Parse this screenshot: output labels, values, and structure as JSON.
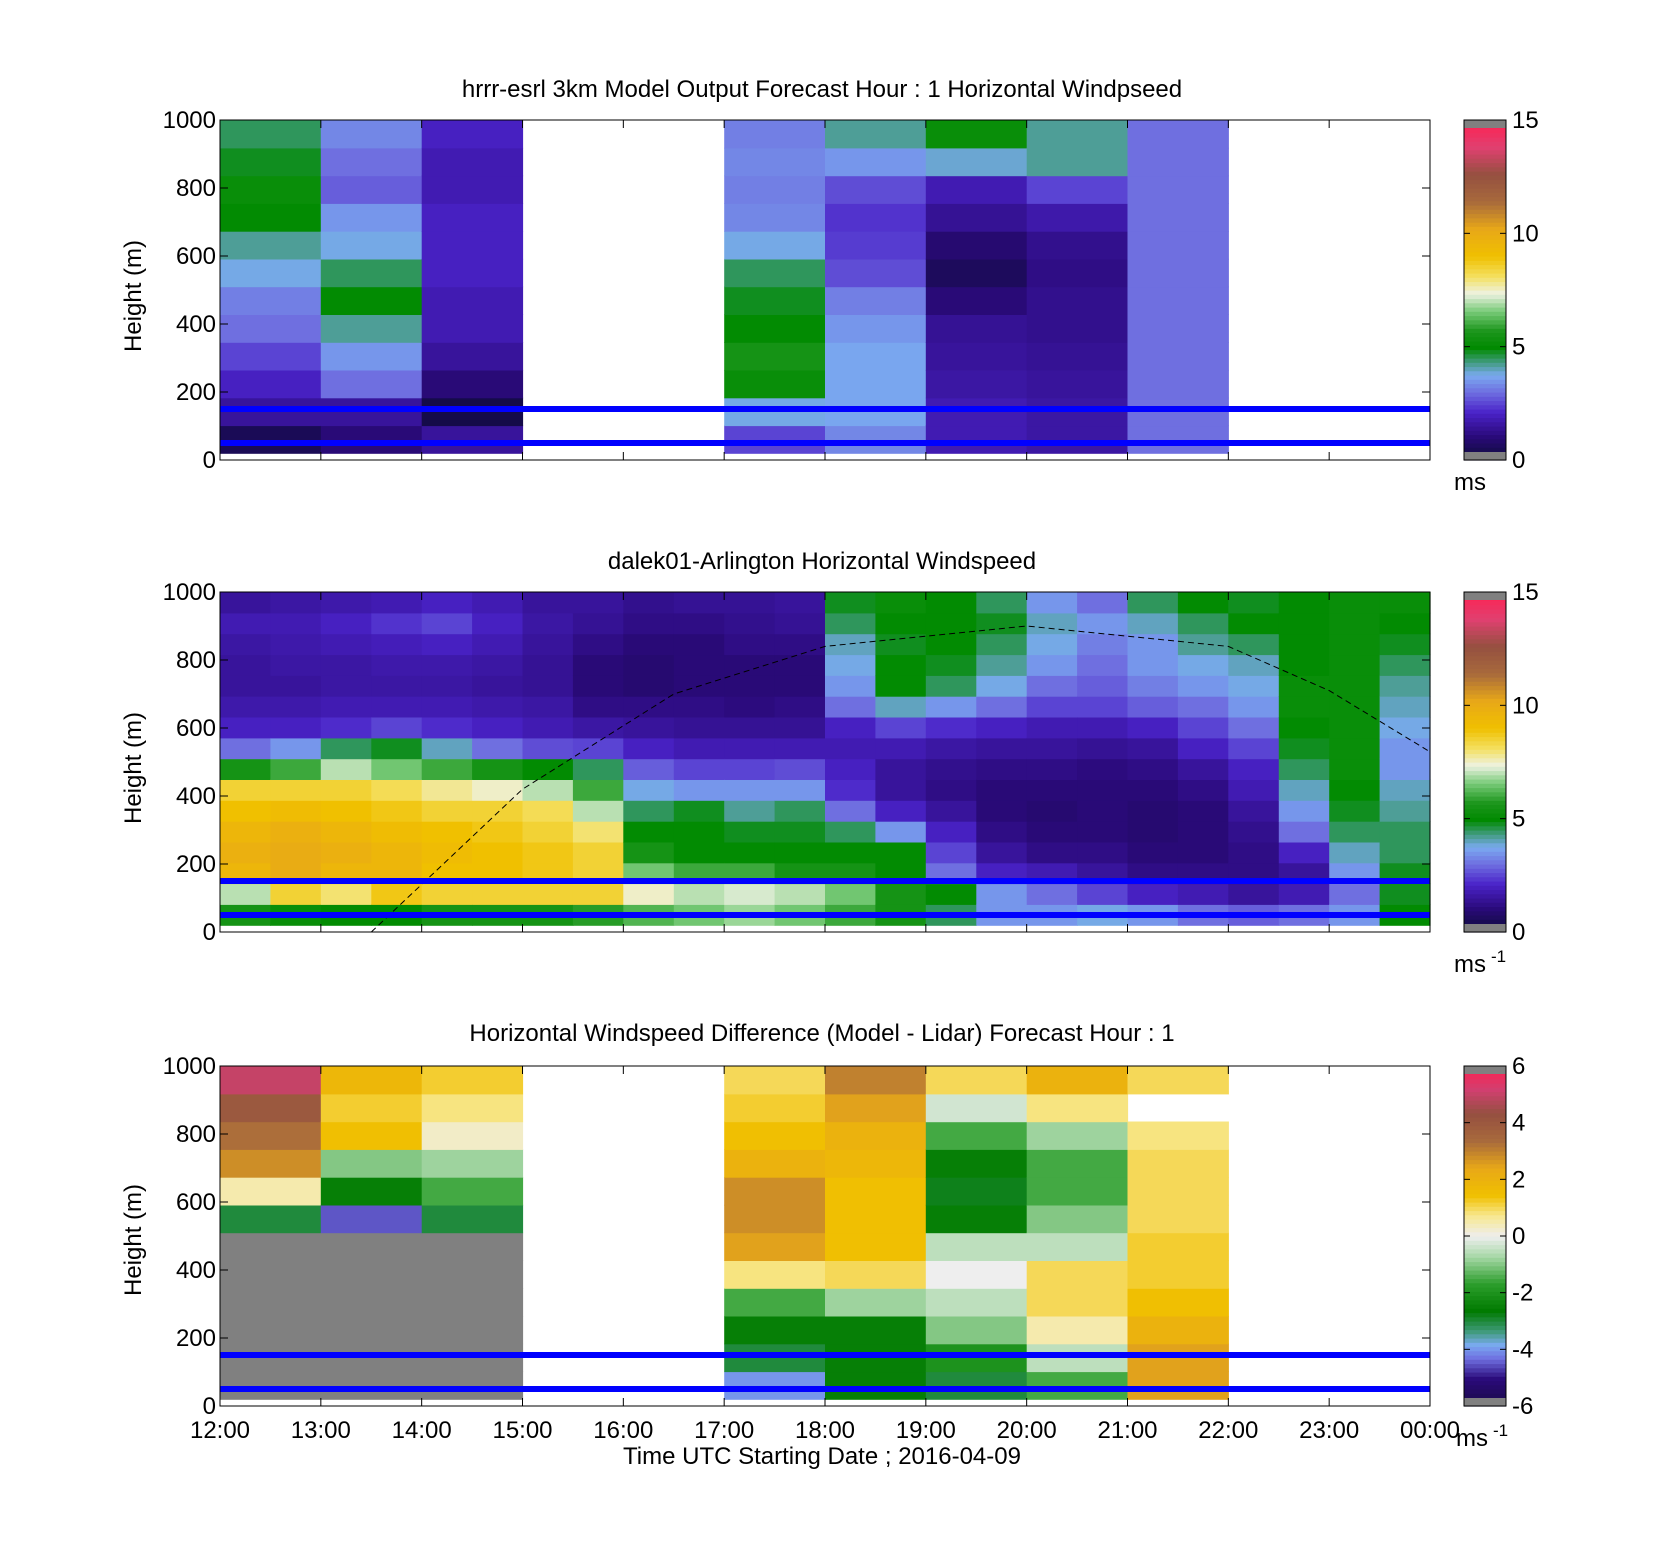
{
  "figure": {
    "xlabel": "Time UTC  Starting Date ; 2016-04-09"
  },
  "chart_data": [
    {
      "type": "heatmap",
      "title": "hrrr-esrl 3km Model Output   Forecast Hour : 1 Horizontal Windpseed",
      "xlabel": "",
      "ylabel": "Height (m)",
      "x_ticks": [
        "12:00",
        "13:00",
        "14:00",
        "15:00",
        "16:00",
        "17:00",
        "18:00",
        "19:00",
        "20:00",
        "21:00",
        "22:00",
        "23:00",
        "00:00"
      ],
      "show_x_tick_labels": false,
      "y_ticks": [
        0,
        200,
        400,
        600,
        800,
        1000
      ],
      "ylim": [
        0,
        1000
      ],
      "colorbar": {
        "min": 0,
        "max": 15,
        "ticks": [
          0,
          5,
          10,
          15
        ],
        "unit": "ms",
        "unit_sup": "",
        "colormap": "windspeed"
      },
      "reference_lines_m": [
        50,
        150
      ],
      "columns": [
        {
          "start": "12:00",
          "end": "13:00",
          "values": [
            0.5,
            1.5,
            2.0,
            2.5,
            3.0,
            3.2,
            3.8,
            4.2,
            5.0,
            5.2,
            4.8,
            4.5
          ]
        },
        {
          "start": "13:00",
          "end": "14:00",
          "values": [
            1.0,
            1.5,
            3.0,
            3.5,
            4.2,
            5.0,
            4.5,
            3.8,
            3.5,
            2.8,
            3.0,
            3.3
          ]
        },
        {
          "start": "14:00",
          "end": "15:00",
          "values": [
            1.5,
            0.3,
            1.0,
            1.5,
            1.8,
            1.8,
            2.0,
            2.0,
            2.0,
            1.8,
            1.8,
            2.0
          ]
        },
        {
          "start": "17:00",
          "end": "18:00",
          "values": [
            2.5,
            3.8,
            5.2,
            5.5,
            5.0,
            4.8,
            4.5,
            3.8,
            3.3,
            3.2,
            3.3,
            3.2
          ]
        },
        {
          "start": "18:00",
          "end": "19:00",
          "values": [
            3.3,
            3.7,
            3.7,
            3.7,
            3.5,
            3.2,
            2.6,
            2.4,
            2.3,
            2.6,
            3.5,
            4.2
          ]
        },
        {
          "start": "19:00",
          "end": "20:00",
          "values": [
            1.8,
            1.8,
            1.6,
            1.5,
            1.4,
            1.0,
            0.6,
            0.9,
            1.4,
            1.8,
            3.9,
            5.2
          ]
        },
        {
          "start": "20:00",
          "end": "21:00",
          "values": [
            1.6,
            1.6,
            1.5,
            1.4,
            1.3,
            1.3,
            1.2,
            1.3,
            1.7,
            2.5,
            4.2,
            4.2
          ]
        },
        {
          "start": "21:00",
          "end": "22:00",
          "values": [
            3.0,
            3.0,
            3.0,
            3.0,
            3.0,
            3.0,
            3.0,
            3.0,
            3.0,
            3.0,
            3.0,
            3.0
          ]
        }
      ]
    },
    {
      "type": "heatmap",
      "title": "dalek01-Arlington  Horizontal Windspeed",
      "xlabel": "",
      "ylabel": "Height (m)",
      "x_ticks": [
        "12:00",
        "13:00",
        "14:00",
        "15:00",
        "16:00",
        "17:00",
        "18:00",
        "19:00",
        "20:00",
        "21:00",
        "22:00",
        "23:00",
        "00:00"
      ],
      "show_x_tick_labels": false,
      "y_ticks": [
        0,
        200,
        400,
        600,
        800,
        1000
      ],
      "ylim": [
        0,
        1000
      ],
      "colorbar": {
        "min": 0,
        "max": 15,
        "ticks": [
          0,
          5,
          10,
          15
        ],
        "unit": "ms",
        "unit_sup": "-1",
        "colormap": "windspeed"
      },
      "reference_lines_m": [
        50,
        150
      ],
      "curve": {
        "style": "dashed",
        "points": [
          [
            "13:30",
            0
          ],
          [
            "15:00",
            420
          ],
          [
            "16:30",
            700
          ],
          [
            "18:00",
            840
          ],
          [
            "20:00",
            900
          ],
          [
            "22:00",
            840
          ],
          [
            "23:00",
            710
          ],
          [
            "00:00",
            530
          ]
        ]
      },
      "columns": [
        {
          "start": "12:00",
          "end": "12:30",
          "values": [
            5.5,
            7.0,
            9.5,
            9.8,
            9.5,
            9.0,
            8.5,
            5.5,
            3.0,
            2.0,
            1.7,
            1.5,
            1.5,
            1.6,
            1.8,
            1.5
          ]
        },
        {
          "start": "12:30",
          "end": "13:00",
          "values": [
            5.2,
            8.5,
            10.0,
            10.0,
            9.8,
            9.2,
            8.5,
            6.0,
            3.5,
            2.0,
            1.7,
            1.5,
            1.6,
            1.7,
            1.8,
            1.6
          ]
        },
        {
          "start": "13:00",
          "end": "13:30",
          "values": [
            5.0,
            8.0,
            9.5,
            9.8,
            9.5,
            9.0,
            8.5,
            7.0,
            4.5,
            2.2,
            1.8,
            1.6,
            1.6,
            1.8,
            2.0,
            1.7
          ]
        },
        {
          "start": "13:30",
          "end": "14:00",
          "values": [
            5.0,
            8.8,
            9.5,
            9.5,
            9.2,
            8.8,
            8.2,
            6.5,
            4.8,
            2.5,
            1.8,
            1.6,
            1.7,
            1.9,
            2.3,
            1.8
          ]
        },
        {
          "start": "14:00",
          "end": "14:30",
          "values": [
            5.5,
            8.5,
            9.0,
            9.2,
            9.0,
            8.5,
            7.8,
            6.0,
            4.0,
            2.2,
            1.8,
            1.6,
            1.7,
            2.0,
            2.5,
            2.0
          ]
        },
        {
          "start": "14:30",
          "end": "15:00",
          "values": [
            5.5,
            8.5,
            9.0,
            9.0,
            8.8,
            8.5,
            7.5,
            5.5,
            3.0,
            2.0,
            1.7,
            1.5,
            1.6,
            1.8,
            2.0,
            1.8
          ]
        },
        {
          "start": "15:00",
          "end": "15:30",
          "values": [
            5.5,
            8.5,
            8.8,
            8.8,
            8.5,
            8.2,
            7.0,
            5.0,
            2.6,
            1.8,
            1.6,
            1.4,
            1.4,
            1.5,
            1.6,
            1.5
          ]
        },
        {
          "start": "15:30",
          "end": "16:00",
          "values": [
            5.8,
            8.5,
            8.5,
            8.5,
            8.0,
            7.0,
            6.0,
            4.5,
            2.5,
            1.6,
            1.2,
            1.0,
            1.0,
            1.2,
            1.4,
            1.5
          ]
        },
        {
          "start": "16:00",
          "end": "16:30",
          "values": [
            6.2,
            7.5,
            6.5,
            5.5,
            5.0,
            4.5,
            3.8,
            2.8,
            2.0,
            1.5,
            1.2,
            0.9,
            0.9,
            1.0,
            1.2,
            1.3
          ]
        },
        {
          "start": "16:30",
          "end": "17:00",
          "values": [
            6.5,
            7.0,
            6.0,
            5.0,
            5.0,
            4.8,
            3.5,
            2.5,
            1.8,
            1.4,
            1.2,
            1.0,
            1.0,
            1.0,
            1.2,
            1.4
          ]
        },
        {
          "start": "17:00",
          "end": "17:30",
          "values": [
            6.8,
            7.2,
            6.0,
            5.0,
            4.8,
            4.2,
            3.5,
            2.5,
            1.8,
            1.4,
            1.1,
            1.0,
            1.0,
            1.2,
            1.3,
            1.4
          ]
        },
        {
          "start": "17:30",
          "end": "18:00",
          "values": [
            6.5,
            7.0,
            5.5,
            5.0,
            4.8,
            4.5,
            3.5,
            2.6,
            1.8,
            1.4,
            1.2,
            1.0,
            1.0,
            1.2,
            1.4,
            1.5
          ]
        },
        {
          "start": "18:00",
          "end": "18:30",
          "values": [
            6.0,
            6.5,
            5.5,
            5.0,
            4.5,
            3.0,
            2.2,
            2.0,
            1.8,
            2.0,
            3.0,
            3.5,
            3.8,
            4.0,
            4.5,
            4.8
          ]
        },
        {
          "start": "18:30",
          "end": "19:00",
          "values": [
            5.5,
            5.5,
            5.0,
            5.0,
            3.5,
            2.0,
            1.5,
            1.5,
            1.8,
            2.5,
            4.0,
            5.0,
            5.0,
            4.8,
            5.0,
            5.2
          ]
        },
        {
          "start": "19:00",
          "end": "19:30",
          "values": [
            4.5,
            5.0,
            3.0,
            2.5,
            2.0,
            1.5,
            1.2,
            1.3,
            1.6,
            2.2,
            3.5,
            4.5,
            4.8,
            5.0,
            5.0,
            5.0
          ]
        },
        {
          "start": "19:30",
          "end": "20:00",
          "values": [
            3.5,
            3.5,
            2.0,
            1.5,
            1.2,
            1.0,
            1.0,
            1.2,
            1.5,
            2.0,
            3.0,
            3.8,
            4.2,
            4.5,
            4.8,
            4.5
          ]
        },
        {
          "start": "20:00",
          "end": "20:30",
          "values": [
            3.5,
            3.0,
            1.8,
            1.2,
            1.0,
            0.9,
            1.0,
            1.2,
            1.5,
            1.8,
            2.5,
            3.0,
            3.5,
            3.8,
            4.0,
            3.5
          ]
        },
        {
          "start": "20:30",
          "end": "21:00",
          "values": [
            3.8,
            2.5,
            1.5,
            1.2,
            1.0,
            1.0,
            1.0,
            1.1,
            1.4,
            1.8,
            2.5,
            2.8,
            3.0,
            3.2,
            3.5,
            3.0
          ]
        },
        {
          "start": "21:00",
          "end": "21:30",
          "values": [
            3.5,
            2.0,
            1.2,
            1.0,
            0.9,
            0.9,
            1.0,
            1.2,
            1.5,
            2.0,
            2.8,
            3.2,
            3.5,
            3.5,
            4.0,
            4.5
          ]
        },
        {
          "start": "21:30",
          "end": "22:00",
          "values": [
            3.0,
            1.8,
            1.2,
            1.0,
            1.0,
            1.0,
            1.2,
            1.5,
            2.0,
            2.5,
            3.0,
            3.5,
            3.8,
            4.2,
            4.5,
            5.0
          ]
        },
        {
          "start": "22:00",
          "end": "22:30",
          "values": [
            2.8,
            1.5,
            1.2,
            1.2,
            1.3,
            1.5,
            1.8,
            2.0,
            2.5,
            3.0,
            3.5,
            3.8,
            4.0,
            4.5,
            5.0,
            4.8
          ]
        },
        {
          "start": "22:30",
          "end": "23:00",
          "values": [
            3.0,
            1.8,
            1.5,
            2.0,
            3.0,
            3.5,
            4.0,
            4.5,
            4.8,
            5.0,
            5.2,
            5.2,
            5.0,
            5.0,
            5.0,
            5.0
          ]
        },
        {
          "start": "23:00",
          "end": "23:30",
          "values": [
            3.5,
            3.0,
            3.5,
            4.0,
            4.5,
            4.8,
            5.0,
            5.2,
            5.2,
            5.2,
            5.2,
            5.2,
            5.2,
            5.2,
            5.2,
            5.2
          ]
        },
        {
          "start": "23:30",
          "end": "00:00",
          "values": [
            5.0,
            4.8,
            4.8,
            4.5,
            4.5,
            4.2,
            4.0,
            3.5,
            3.5,
            3.8,
            4.0,
            4.2,
            4.5,
            4.8,
            5.0,
            5.2
          ]
        }
      ]
    },
    {
      "type": "heatmap",
      "title": "Horizontal Windspeed Difference (Model - Lidar) Forecast Hour : 1",
      "xlabel": "Time UTC  Starting Date ; 2016-04-09",
      "ylabel": "Height (m)",
      "x_ticks": [
        "12:00",
        "13:00",
        "14:00",
        "15:00",
        "16:00",
        "17:00",
        "18:00",
        "19:00",
        "20:00",
        "21:00",
        "22:00",
        "23:00",
        "00:00"
      ],
      "show_x_tick_labels": true,
      "y_ticks": [
        0,
        200,
        400,
        600,
        800,
        1000
      ],
      "ylim": [
        0,
        1000
      ],
      "colorbar": {
        "min": -6,
        "max": 6,
        "ticks": [
          -6,
          -4,
          -2,
          0,
          2,
          4,
          6
        ],
        "unit": "ms",
        "unit_sup": "-1",
        "colormap": "difference"
      },
      "reference_lines_m": [
        50,
        150
      ],
      "columns": [
        {
          "start": "12:00",
          "end": "13:00",
          "values": [
            -6.5,
            -6.5,
            -6.5,
            -6.5,
            -6.5,
            -6.5,
            -3.0,
            0.5,
            2.8,
            3.3,
            4.0,
            5.0
          ]
        },
        {
          "start": "13:00",
          "end": "14:00",
          "values": [
            -6.5,
            -6.5,
            -6.5,
            -6.5,
            -6.5,
            -6.5,
            -4.5,
            -2.5,
            -1.0,
            1.5,
            1.2,
            1.8
          ]
        },
        {
          "start": "14:00",
          "end": "15:00",
          "values": [
            -6.5,
            -6.5,
            -6.5,
            -6.5,
            -6.5,
            -6.5,
            -3.0,
            -1.5,
            -0.8,
            0.3,
            0.8,
            1.2
          ]
        },
        {
          "start": "17:00",
          "end": "18:00",
          "values": [
            -4.0,
            -3.0,
            -2.5,
            -1.5,
            0.8,
            2.5,
            2.8,
            2.8,
            2.0,
            1.5,
            1.2,
            1.0
          ]
        },
        {
          "start": "18:00",
          "end": "19:00",
          "values": [
            -2.5,
            -2.5,
            -2.5,
            -0.8,
            1.0,
            1.5,
            1.5,
            1.5,
            1.8,
            2.0,
            2.5,
            3.0
          ]
        },
        {
          "start": "19:00",
          "end": "20:00",
          "values": [
            -3.0,
            -2.0,
            -1.0,
            -0.5,
            0.0,
            -0.5,
            -2.5,
            -2.8,
            -2.5,
            -1.5,
            -0.3,
            1.0
          ]
        },
        {
          "start": "20:00",
          "end": "21:00",
          "values": [
            -1.5,
            -0.5,
            0.5,
            1.0,
            1.0,
            -0.5,
            -1.0,
            -1.5,
            -1.5,
            -0.8,
            0.8,
            2.0
          ]
        },
        {
          "start": "21:00",
          "end": "22:00",
          "values": [
            2.5,
            2.5,
            2.0,
            1.5,
            1.2,
            1.2,
            1.0,
            1.0,
            1.0,
            0.8,
            null,
            1.0
          ]
        }
      ]
    }
  ],
  "colors": {
    "reference_line": "#0000ff",
    "out_of_range": "#808080"
  }
}
